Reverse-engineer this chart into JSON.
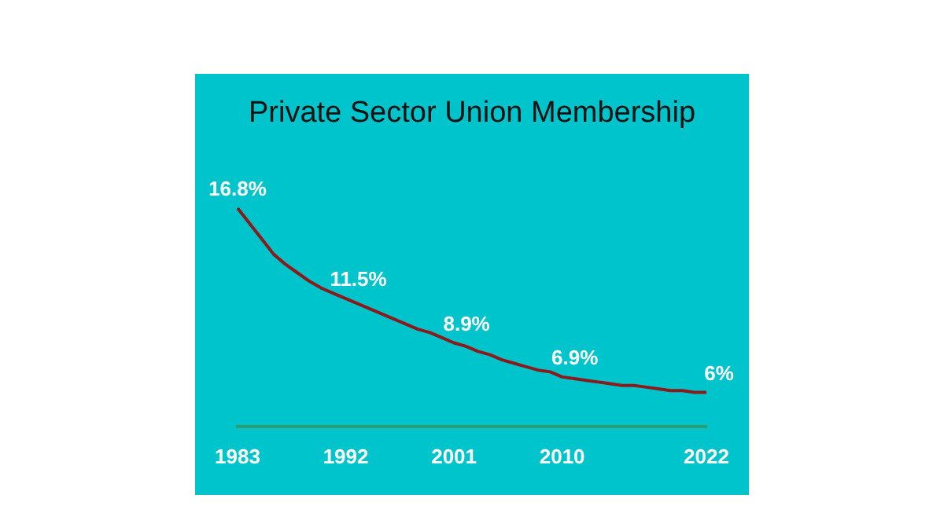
{
  "chart_data": {
    "type": "line",
    "title": "Private Sector Union Membership",
    "categories": [
      "1983",
      null,
      null,
      null,
      null,
      null,
      null,
      null,
      null,
      "1992",
      null,
      null,
      null,
      null,
      null,
      null,
      null,
      null,
      "2001",
      null,
      null,
      null,
      null,
      null,
      null,
      null,
      null,
      "2010",
      null,
      null,
      null,
      null,
      null,
      null,
      null,
      null,
      null,
      null,
      null,
      "2022"
    ],
    "series": [
      {
        "color": "#8b1a1a",
        "values": [
          16.8,
          15.9,
          15.0,
          14.1,
          13.5,
          13.0,
          12.5,
          12.1,
          11.8,
          11.5,
          11.2,
          10.9,
          10.6,
          10.3,
          10.0,
          9.7,
          9.5,
          9.2,
          8.9,
          8.7,
          8.4,
          8.2,
          7.9,
          7.7,
          7.5,
          7.3,
          7.2,
          6.9,
          6.8,
          6.7,
          6.6,
          6.5,
          6.4,
          6.4,
          6.3,
          6.2,
          6.1,
          6.1,
          6.0,
          6.0
        ],
        "value_labels": [
          "16.8%",
          null,
          null,
          null,
          null,
          null,
          null,
          null,
          null,
          "11.5%",
          null,
          null,
          null,
          null,
          null,
          null,
          null,
          null,
          "8.9%",
          null,
          null,
          null,
          null,
          null,
          null,
          null,
          null,
          "6.9%",
          null,
          null,
          null,
          null,
          null,
          null,
          null,
          null,
          null,
          null,
          null,
          "6%"
        ]
      }
    ],
    "grid": false,
    "legend": false,
    "marker": "none",
    "line_style": "solid"
  }
}
